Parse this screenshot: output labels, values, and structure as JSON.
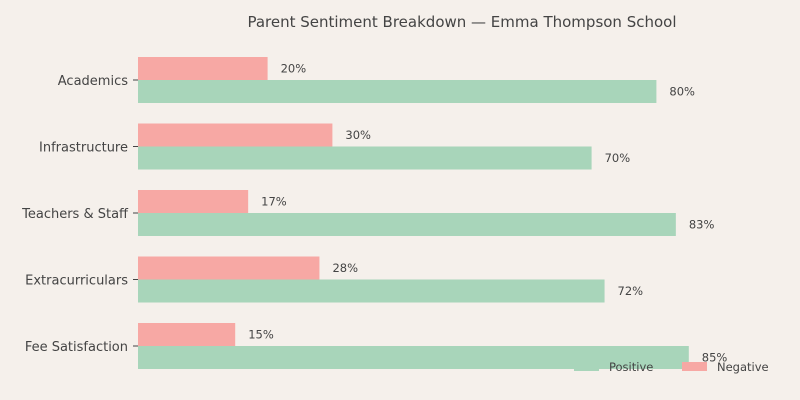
{
  "chart_data": {
    "type": "bar",
    "orientation": "horizontal",
    "title": "Parent Sentiment Breakdown — Emma Thompson School",
    "xlabel": "",
    "ylabel": "",
    "xlim": [
      0,
      100
    ],
    "grid": false,
    "legend_position": "bottom-right",
    "value_suffix": "%",
    "categories": [
      "Academics",
      "Infrastructure",
      "Teachers & Staff",
      "Extracurriculars",
      "Fee Satisfaction"
    ],
    "series": [
      {
        "name": "Positive",
        "color": "#a8d5ba",
        "values": [
          80,
          70,
          83,
          72,
          85
        ]
      },
      {
        "name": "Negative",
        "color": "#f7a8a4",
        "values": [
          20,
          30,
          17,
          28,
          15
        ]
      }
    ]
  }
}
